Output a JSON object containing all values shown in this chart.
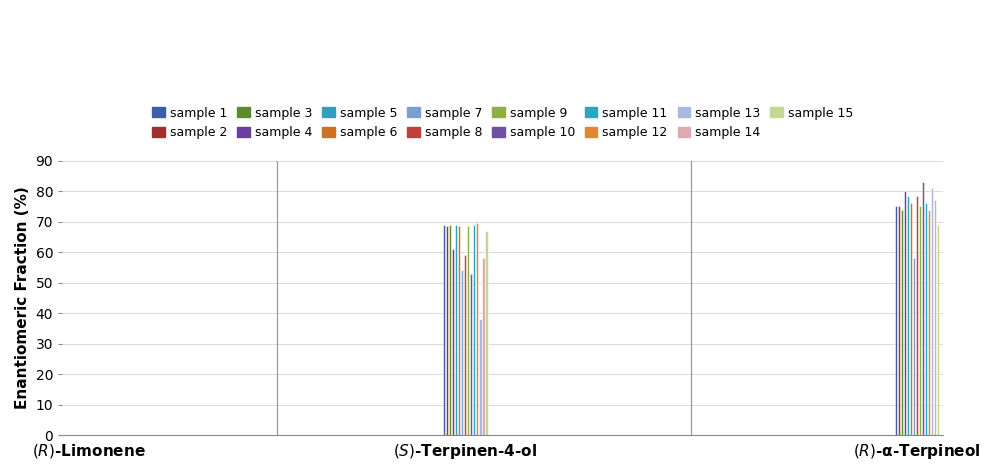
{
  "categories": [
    "(R)-Limonene",
    "(S)-Terpinen-4-ol",
    "(R)-α-Terpineol"
  ],
  "samples": [
    "sample 1",
    "sample 2",
    "sample 3",
    "sample 4",
    "sample 5",
    "sample 6",
    "sample 7",
    "sample 8",
    "sample 9",
    "sample 10",
    "sample 11",
    "sample 12",
    "sample 13",
    "sample 14",
    "sample 15"
  ],
  "colors": [
    "#3F5EA8",
    "#A03030",
    "#5C8B2E",
    "#6B3FA0",
    "#2FA0C0",
    "#D07020",
    "#7B9FD0",
    "#C04040",
    "#8EB040",
    "#7050A0",
    "#28A8C0",
    "#E08830",
    "#A8B8E0",
    "#E0A8B0",
    "#C0D890"
  ],
  "values": {
    "(R)-Limonene": [
      null,
      null,
      null,
      null,
      null,
      null,
      null,
      null,
      null,
      null,
      null,
      null,
      null,
      null,
      null
    ],
    "(S)-Terpinen-4-ol": [
      69,
      68.5,
      69,
      61,
      69,
      68.5,
      54,
      59,
      68.5,
      53,
      69,
      69.5,
      38,
      58,
      67
    ],
    "(R)-α-Terpineol": [
      75,
      75,
      74,
      80,
      78.5,
      76,
      58,
      78.5,
      75,
      83,
      76,
      74,
      81,
      77,
      69
    ]
  },
  "ylabel": "Enantiomeric Fraction (%)",
  "ylim": [
    0,
    90
  ],
  "yticks": [
    0,
    10,
    20,
    30,
    40,
    50,
    60,
    70,
    80,
    90
  ],
  "cat_labels": [
    "(R)-Limonene",
    "(S)-Terpinen-4-ol",
    "(R)-α-Terpineol"
  ],
  "bar_width": 0.018,
  "group_centers": [
    1.0,
    3.5,
    6.5
  ]
}
